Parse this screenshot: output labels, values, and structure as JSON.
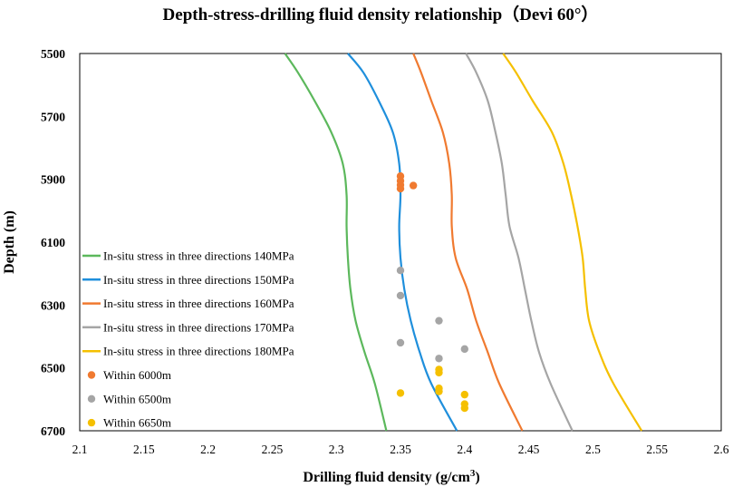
{
  "chart_data": {
    "type": "line",
    "title": "Depth-stress-drilling fluid density relationship（Devi 60°）",
    "xlabel": "Drilling fluid density (g/cm",
    "xlabel_sup": "3",
    "xlabel_end": ")",
    "ylabel": "Depth (m)",
    "xlim": [
      2.1,
      2.6
    ],
    "ylim": [
      5500,
      6700
    ],
    "y_inverted": true,
    "xticks": [
      2.1,
      2.15,
      2.2,
      2.25,
      2.3,
      2.35,
      2.4,
      2.45,
      2.5,
      2.55,
      2.6
    ],
    "xtick_labels": [
      "2.1",
      "2.15",
      "2.2",
      "2.25",
      "2.3",
      "2.35",
      "2.4",
      "2.45",
      "2.5",
      "2.55",
      "2.6"
    ],
    "yticks": [
      5500,
      5700,
      5900,
      6100,
      6300,
      6500,
      6700
    ],
    "ytick_labels": [
      "5500",
      "5700",
      "5900",
      "6100",
      "6300",
      "6500",
      "6700"
    ],
    "grid": false,
    "legend_position": "left",
    "series": [
      {
        "name": "In-situ stress in three directions 140MPa",
        "type": "line",
        "color": "#5cb85c",
        "points": [
          [
            2.26,
            5500
          ],
          [
            2.27,
            5560
          ],
          [
            2.283,
            5650
          ],
          [
            2.296,
            5750
          ],
          [
            2.305,
            5850
          ],
          [
            2.308,
            5950
          ],
          [
            2.308,
            6050
          ],
          [
            2.309,
            6150
          ],
          [
            2.311,
            6250
          ],
          [
            2.315,
            6350
          ],
          [
            2.322,
            6450
          ],
          [
            2.33,
            6550
          ],
          [
            2.339,
            6700
          ]
        ]
      },
      {
        "name": "In-situ stress in three directions 150MPa",
        "type": "line",
        "color": "#1f8fdc",
        "points": [
          [
            2.309,
            5500
          ],
          [
            2.321,
            5560
          ],
          [
            2.333,
            5650
          ],
          [
            2.344,
            5750
          ],
          [
            2.349,
            5850
          ],
          [
            2.35,
            5950
          ],
          [
            2.349,
            6050
          ],
          [
            2.35,
            6150
          ],
          [
            2.353,
            6250
          ],
          [
            2.358,
            6350
          ],
          [
            2.365,
            6450
          ],
          [
            2.374,
            6550
          ],
          [
            2.394,
            6700
          ]
        ]
      },
      {
        "name": "In-situ stress in three directions 160MPa",
        "type": "line",
        "color": "#f07a30",
        "points": [
          [
            2.36,
            5500
          ],
          [
            2.366,
            5560
          ],
          [
            2.374,
            5650
          ],
          [
            2.383,
            5750
          ],
          [
            2.388,
            5850
          ],
          [
            2.39,
            5950
          ],
          [
            2.39,
            6050
          ],
          [
            2.393,
            6150
          ],
          [
            2.402,
            6250
          ],
          [
            2.409,
            6350
          ],
          [
            2.418,
            6450
          ],
          [
            2.427,
            6550
          ],
          [
            2.445,
            6700
          ]
        ]
      },
      {
        "name": "In-situ stress in three directions 170MPa",
        "type": "line",
        "color": "#a5a5a5",
        "points": [
          [
            2.401,
            5500
          ],
          [
            2.409,
            5560
          ],
          [
            2.418,
            5650
          ],
          [
            2.424,
            5750
          ],
          [
            2.429,
            5850
          ],
          [
            2.432,
            5950
          ],
          [
            2.435,
            6050
          ],
          [
            2.442,
            6150
          ],
          [
            2.447,
            6250
          ],
          [
            2.452,
            6350
          ],
          [
            2.458,
            6450
          ],
          [
            2.467,
            6550
          ],
          [
            2.484,
            6700
          ]
        ]
      },
      {
        "name": "In-situ stress in three directions 180MPa",
        "type": "line",
        "color": "#f5c000",
        "points": [
          [
            2.43,
            5500
          ],
          [
            2.44,
            5560
          ],
          [
            2.453,
            5650
          ],
          [
            2.468,
            5750
          ],
          [
            2.477,
            5850
          ],
          [
            2.483,
            5950
          ],
          [
            2.488,
            6050
          ],
          [
            2.492,
            6150
          ],
          [
            2.494,
            6250
          ],
          [
            2.497,
            6350
          ],
          [
            2.505,
            6450
          ],
          [
            2.516,
            6550
          ],
          [
            2.538,
            6700
          ]
        ]
      },
      {
        "name": "Within 6000m",
        "type": "scatter",
        "color": "#f07a30",
        "points": [
          [
            2.35,
            5890
          ],
          [
            2.35,
            5905
          ],
          [
            2.35,
            5918
          ],
          [
            2.35,
            5930
          ],
          [
            2.36,
            5920
          ]
        ]
      },
      {
        "name": "Within 6500m",
        "type": "scatter",
        "color": "#a5a5a5",
        "points": [
          [
            2.35,
            6190
          ],
          [
            2.35,
            6270
          ],
          [
            2.38,
            6350
          ],
          [
            2.35,
            6420
          ],
          [
            2.38,
            6470
          ],
          [
            2.4,
            6440
          ]
        ]
      },
      {
        "name": "Within 6650m",
        "type": "scatter",
        "color": "#f5c000",
        "points": [
          [
            2.38,
            6505
          ],
          [
            2.38,
            6515
          ],
          [
            2.38,
            6565
          ],
          [
            2.38,
            6575
          ],
          [
            2.35,
            6580
          ],
          [
            2.4,
            6585
          ],
          [
            2.4,
            6615
          ],
          [
            2.4,
            6628
          ]
        ]
      }
    ]
  }
}
